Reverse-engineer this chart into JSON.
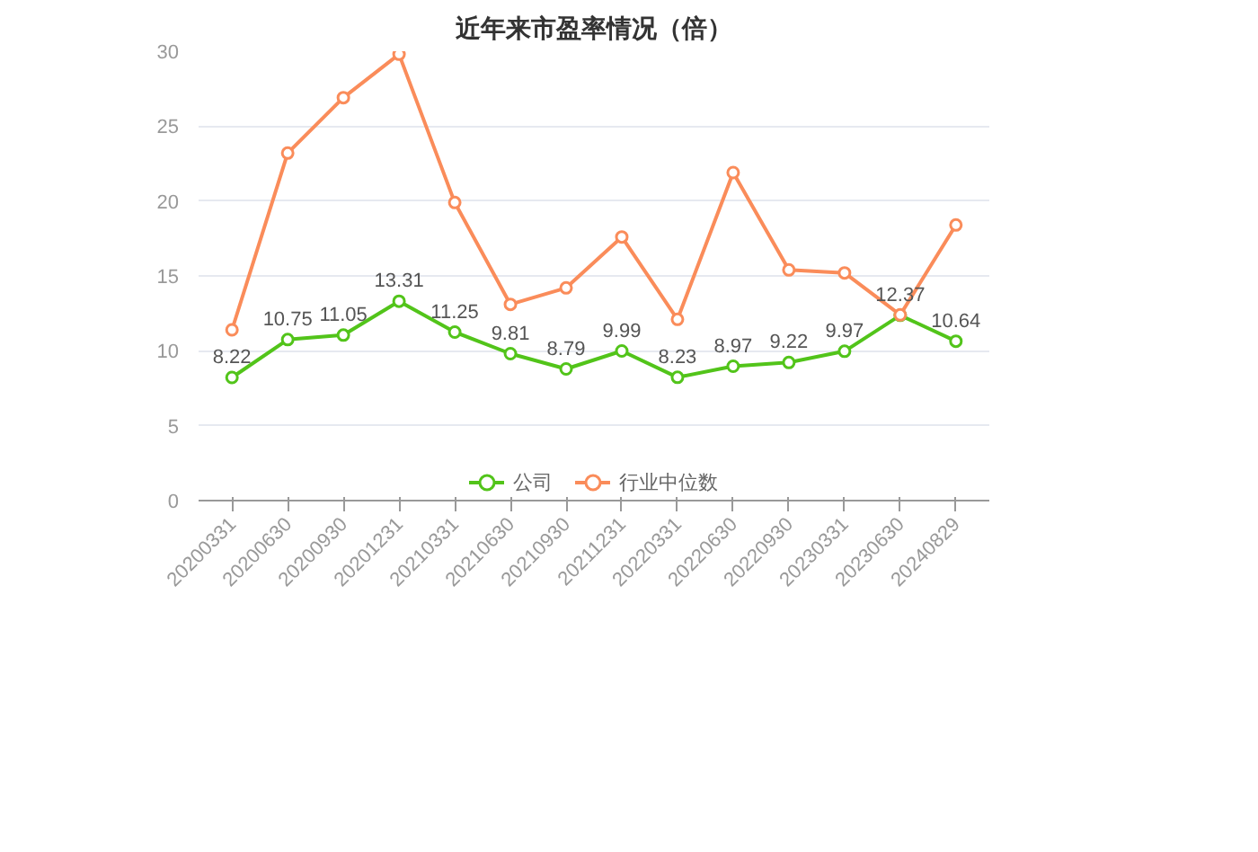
{
  "chart_data": {
    "type": "line",
    "title": "近年来市盈率情况（倍）",
    "categories": [
      "20200331",
      "20200630",
      "20200930",
      "20201231",
      "20210331",
      "20210630",
      "20210930",
      "20211231",
      "20220331",
      "20220630",
      "20220930",
      "20230331",
      "20230630",
      "20240829"
    ],
    "series": [
      {
        "name": "公司",
        "color": "#52c41a",
        "values": [
          8.22,
          10.75,
          11.05,
          13.31,
          11.25,
          9.81,
          8.79,
          9.99,
          8.23,
          8.97,
          9.22,
          9.97,
          12.37,
          10.64
        ],
        "value_labels": [
          "8.22",
          "10.75",
          "11.05",
          "13.31",
          "11.25",
          "9.81",
          "8.79",
          "9.99",
          "8.23",
          "8.97",
          "9.22",
          "9.97",
          "12.37",
          "10.64"
        ]
      },
      {
        "name": "行业中位数",
        "color": "#fa8c5a",
        "values": [
          11.4,
          23.2,
          26.9,
          29.8,
          19.9,
          13.1,
          14.2,
          17.6,
          12.1,
          21.9,
          15.4,
          15.2,
          12.4,
          18.4
        ]
      }
    ],
    "ylim": [
      0,
      30
    ],
    "yticks": [
      0,
      5,
      10,
      15,
      20,
      25,
      30
    ],
    "grid": "y",
    "legend": "bottom",
    "marker": "circle",
    "line_style": "solid"
  }
}
